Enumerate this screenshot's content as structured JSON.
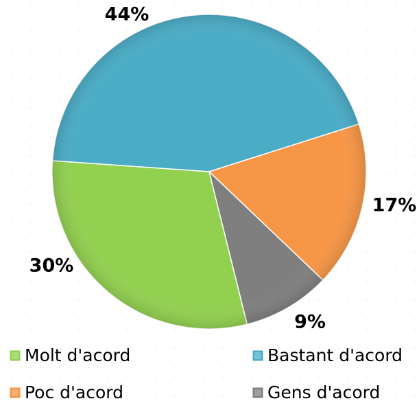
{
  "chart_data": {
    "type": "pie",
    "categories": [
      "Molt d'acord",
      "Bastant d'acord",
      "Poc d'acord",
      "Gens d'acord"
    ],
    "values": [
      30,
      44,
      17,
      9
    ],
    "value_labels": [
      "30%",
      "44%",
      "17%",
      "9%"
    ],
    "colors": [
      "#92d050",
      "#4bacc6",
      "#f79646",
      "#7f7f7f"
    ],
    "legend": "bottom"
  }
}
